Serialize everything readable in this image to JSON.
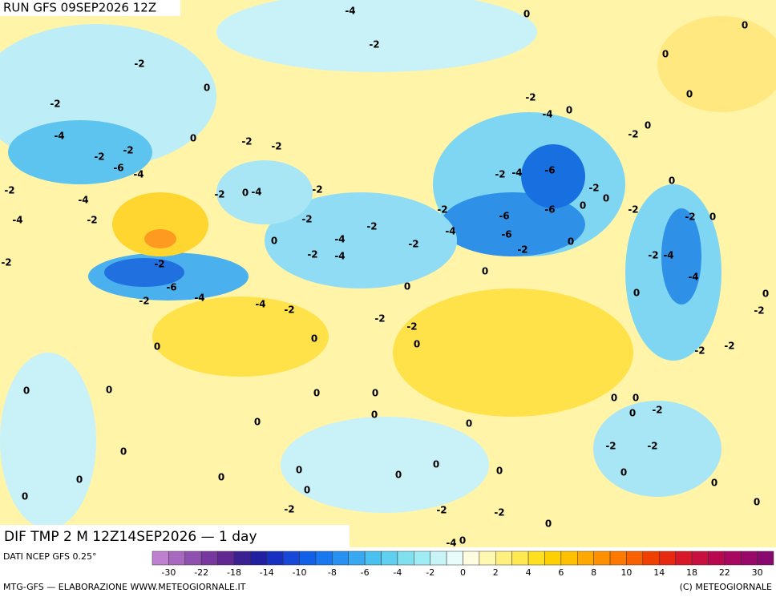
{
  "header": {
    "run": "RUN GFS 09SEP2026 12Z",
    "field": "DIF TMP 2 M 12Z14SEP2026 — 1 day"
  },
  "map_labels": [
    "-4",
    "0",
    "0",
    "-2",
    "0",
    "-2",
    "0",
    "0",
    "-2",
    "-2",
    "0",
    "-4",
    "0",
    "-4",
    "0",
    "-2",
    "-2",
    "-2",
    "-2",
    "-2",
    "-6",
    "-4",
    "-2",
    "-4",
    "-6",
    "0",
    "-2",
    "-2",
    "0",
    "-4",
    "-2",
    "-4",
    "-2",
    "0",
    "-2",
    "-6",
    "-6",
    "0",
    "-2",
    "-2",
    "0",
    "-4",
    "-2",
    "-2",
    "-2",
    "-4",
    "-6",
    "0",
    "-4",
    "-2",
    "0",
    "-2",
    "-2",
    "-4",
    "-2",
    "-4",
    "-2",
    "-2",
    "0",
    "-4",
    "-6",
    "0",
    "0",
    "0",
    "-4",
    "-2",
    "-4",
    "-2",
    "-2",
    "-2",
    "-2",
    "0",
    "0",
    "0",
    "-2",
    "-2",
    "0",
    "0",
    "0",
    "0",
    "0",
    "0",
    "-2",
    "0",
    "0",
    "0",
    "0",
    "-2",
    "-2",
    "0",
    "0",
    "0",
    "0",
    "0",
    "0",
    "0",
    "0",
    "0",
    "0",
    "0",
    "0",
    "-2",
    "-2",
    "-2",
    "0",
    "-4",
    "0"
  ],
  "colorbar": {
    "source": "DATI NCEP GFS 0.25°",
    "colors": [
      "#c080d0",
      "#a868c0",
      "#9050b0",
      "#7838a0",
      "#602890",
      "#3a2090",
      "#2020a0",
      "#1830c0",
      "#1848d8",
      "#1060e8",
      "#1878f0",
      "#2890f0",
      "#38a8f0",
      "#48c0f0",
      "#60d0f0",
      "#80e0f0",
      "#a0ecf4",
      "#c8f4f8",
      "#e8fcfc",
      "#fffce0",
      "#fff8b0",
      "#fff080",
      "#ffe850",
      "#ffe020",
      "#ffd000",
      "#ffc000",
      "#ffa800",
      "#ff9000",
      "#ff7800",
      "#f86000",
      "#f04000",
      "#e82810",
      "#d81828",
      "#c81040",
      "#b80850",
      "#a80860",
      "#980868",
      "#880870"
    ],
    "ticks": [
      -30,
      -22,
      -18,
      -14,
      -10,
      -8,
      -6,
      -4,
      -2,
      0,
      2,
      4,
      6,
      8,
      10,
      14,
      18,
      22,
      30
    ]
  },
  "footer": {
    "credit": "MTG-GFS — ELABORAZIONE WWW.METEOGIORNALE.IT",
    "copyright": "(C) METEOGIORNALE"
  }
}
